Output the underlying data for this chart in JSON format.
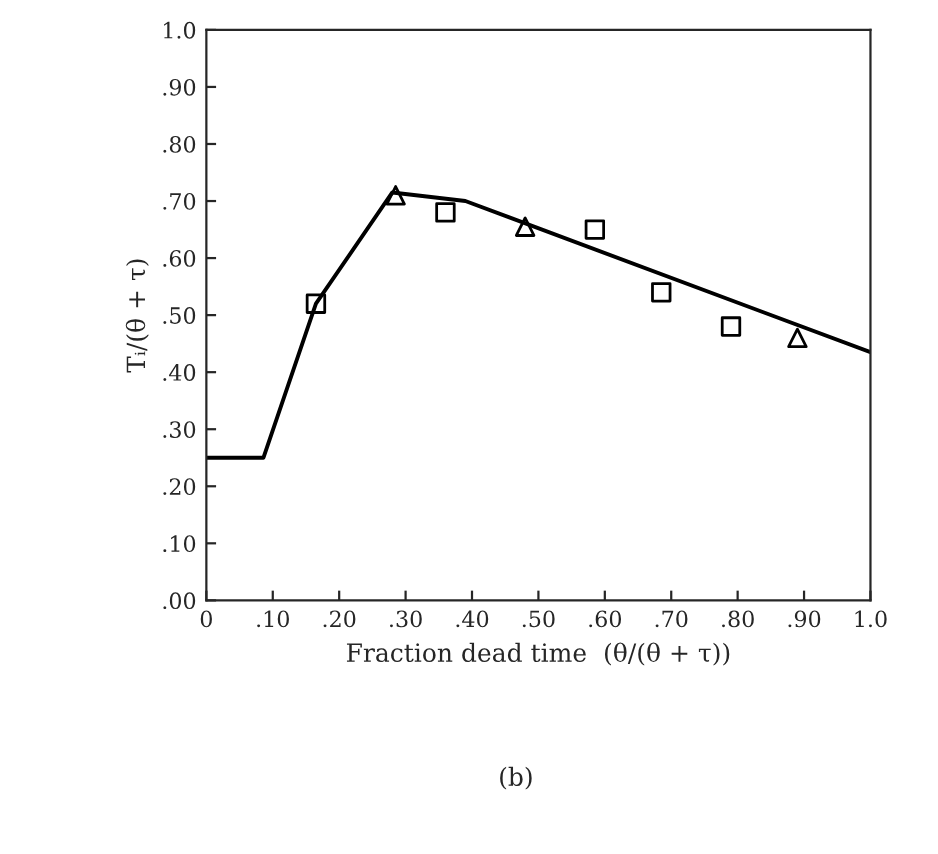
{
  "chart_data": {
    "type": "line",
    "xlabel": "Fraction dead time  (θ/(θ + τ))",
    "ylabel": "Tᵢ/(θ + τ)",
    "annotations": [
      "(b)"
    ],
    "series": [
      {
        "color": "#000000",
        "marker": "none",
        "x": [
          0,
          0.086,
          0.165,
          0.28,
          0.39,
          1.0
        ],
        "values": [
          0.25,
          0.25,
          0.52,
          0.715,
          0.7,
          0.435
        ]
      },
      {
        "type": "scatter",
        "color": "#000000",
        "marker": "square",
        "x": [
          0.165,
          0.36,
          0.585,
          0.685,
          0.79
        ],
        "values": [
          0.52,
          0.68,
          0.65,
          0.54,
          0.48
        ]
      },
      {
        "type": "scatter",
        "color": "#000000",
        "marker": "triangle",
        "x": [
          0.285,
          0.48,
          0.89
        ],
        "values": [
          0.71,
          0.655,
          0.46
        ]
      }
    ],
    "xlim": [
      0,
      1.0
    ],
    "ylim": [
      0,
      1.0
    ],
    "xticks": [
      {
        "value": 0,
        "label": "0"
      },
      {
        "value": 0.1,
        "label": ".10"
      },
      {
        "value": 0.2,
        "label": ".20"
      },
      {
        "value": 0.3,
        "label": ".30"
      },
      {
        "value": 0.4,
        "label": ".40"
      },
      {
        "value": 0.5,
        "label": ".50"
      },
      {
        "value": 0.6,
        "label": ".60"
      },
      {
        "value": 0.7,
        "label": ".70"
      },
      {
        "value": 0.8,
        "label": ".80"
      },
      {
        "value": 0.9,
        "label": ".90"
      },
      {
        "value": 1.0,
        "label": "1.0"
      }
    ],
    "yticks": [
      {
        "value": 0,
        "label": ".00"
      },
      {
        "value": 0.1,
        "label": ".10"
      },
      {
        "value": 0.2,
        "label": ".20"
      },
      {
        "value": 0.3,
        "label": ".30"
      },
      {
        "value": 0.4,
        "label": ".40"
      },
      {
        "value": 0.5,
        "label": ".50"
      },
      {
        "value": 0.6,
        "label": ".60"
      },
      {
        "value": 0.7,
        "label": ".70"
      },
      {
        "value": 0.8,
        "label": ".80"
      },
      {
        "value": 0.9,
        "label": ".90"
      },
      {
        "value": 1.0,
        "label": "1.0"
      }
    ],
    "grid": false,
    "legend": false
  }
}
